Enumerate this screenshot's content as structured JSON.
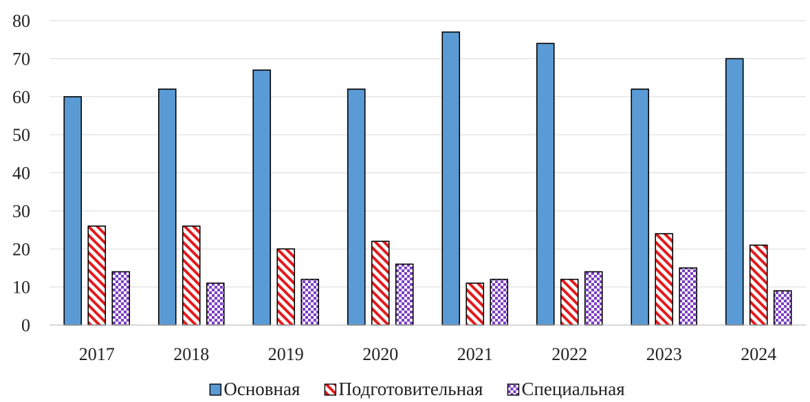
{
  "chart_data": {
    "type": "bar",
    "categories": [
      "2017",
      "2018",
      "2019",
      "2020",
      "2021",
      "2022",
      "2023",
      "2024"
    ],
    "series": [
      {
        "name": "Основная",
        "values": [
          60,
          62,
          67,
          62,
          77,
          74,
          62,
          70
        ],
        "color": "#5b9bd5",
        "pattern": "solid"
      },
      {
        "name": "Подготовительная",
        "values": [
          26,
          26,
          20,
          22,
          11,
          12,
          24,
          21
        ],
        "color": "#e41a1c",
        "pattern": "diagonal-hatch"
      },
      {
        "name": "Специальная",
        "values": [
          14,
          11,
          12,
          16,
          12,
          14,
          15,
          9
        ],
        "color": "#7b3fc4",
        "pattern": "checker"
      }
    ],
    "ylim": [
      0,
      80
    ],
    "yticks": [
      "0",
      "10",
      "20",
      "30",
      "40",
      "50",
      "60",
      "70",
      "80"
    ],
    "grid": true,
    "legend_position": "bottom"
  }
}
